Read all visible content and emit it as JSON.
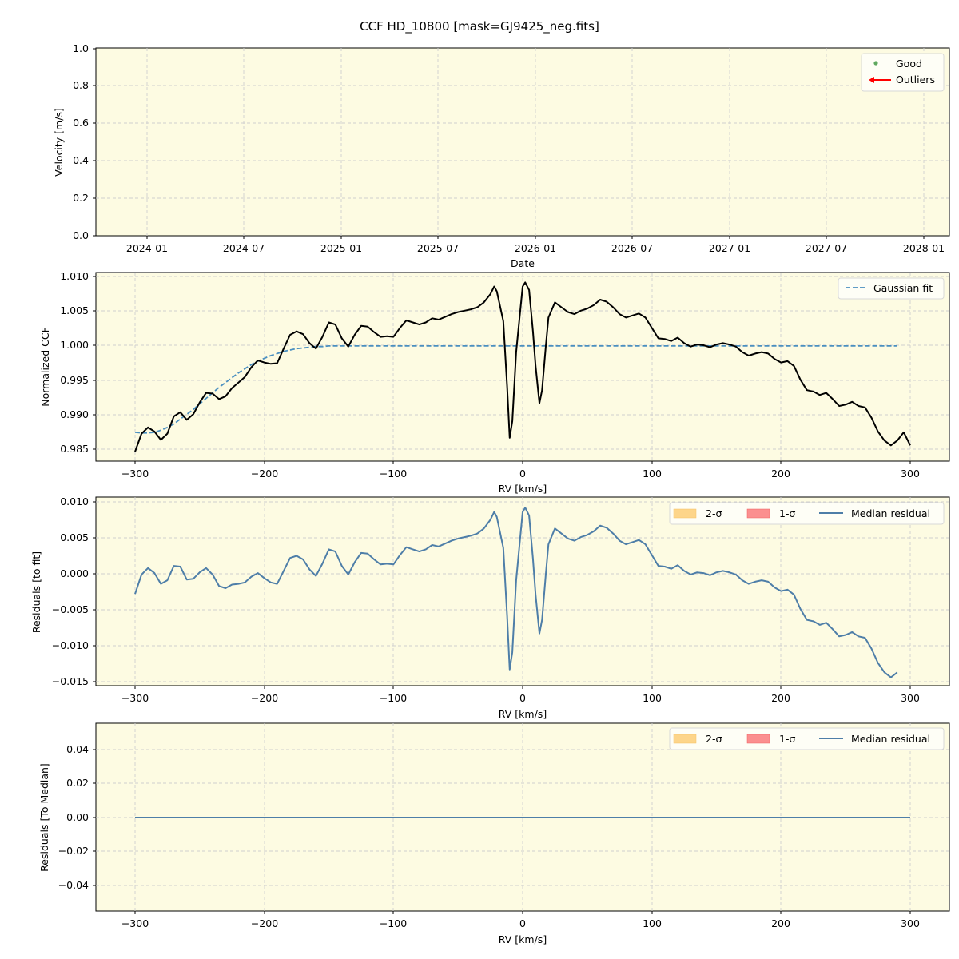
{
  "figure": {
    "title": "CCF HD_10800 [mask=GJ9425_neg.fits]",
    "background": "#fdfbe2"
  },
  "panels": [
    {
      "id": "velocity",
      "ylabel": "Velocity [m/s]",
      "xlabel": "Date",
      "yticks": [
        "0.0",
        "0.2",
        "0.4",
        "0.6",
        "0.8",
        "1.0"
      ],
      "xticks": [
        "2024-01",
        "2024-07",
        "2025-01",
        "2025-07",
        "2026-01",
        "2026-07",
        "2027-01",
        "2027-07",
        "2028-01"
      ],
      "legend": [
        {
          "label": "Good",
          "color": "#5fa85f",
          "marker": "dot"
        },
        {
          "label": "Outliers",
          "color": "#ff0000",
          "marker": "arrow-left"
        }
      ]
    },
    {
      "id": "ccf",
      "ylabel": "Normalized CCF",
      "xlabel": "RV [km/s]",
      "yticks": [
        "0.985",
        "0.990",
        "0.995",
        "1.000",
        "1.005",
        "1.010"
      ],
      "xticks": [
        "−300",
        "−200",
        "−100",
        "0",
        "100",
        "200",
        "300"
      ],
      "legend": [
        {
          "label": "Gaussian fit",
          "color": "#4a8fc0",
          "style": "dashed"
        }
      ]
    },
    {
      "id": "residuals-fit",
      "ylabel": "Residuals [to fit]",
      "xlabel": "RV [km/s]",
      "yticks": [
        "−0.015",
        "−0.010",
        "−0.005",
        "0.000",
        "0.005",
        "0.010"
      ],
      "xticks": [
        "−300",
        "−200",
        "−100",
        "0",
        "100",
        "200",
        "300"
      ],
      "legend": [
        {
          "label": "2-σ",
          "color": "#fdd58a"
        },
        {
          "label": "1-σ",
          "color": "#fb8f8f"
        },
        {
          "label": "Median residual",
          "color": "#4e7ea8"
        }
      ]
    },
    {
      "id": "residuals-median",
      "ylabel": "Residuals [To Median]",
      "xlabel": "RV [km/s]",
      "yticks": [
        "−0.04",
        "−0.02",
        "0.00",
        "0.02",
        "0.04"
      ],
      "xticks": [
        "−300",
        "−200",
        "−100",
        "0",
        "100",
        "200",
        "300"
      ],
      "legend": [
        {
          "label": "2-σ",
          "color": "#fdd58a"
        },
        {
          "label": "1-σ",
          "color": "#fb8f8f"
        },
        {
          "label": "Median residual",
          "color": "#4e7ea8"
        }
      ]
    }
  ],
  "chart_data": [
    {
      "type": "scatter",
      "title": "CCF HD_10800 [mask=GJ9425_neg.fits]",
      "xlabel": "Date",
      "ylabel": "Velocity [m/s]",
      "x_tick_labels": [
        "2024-01",
        "2024-07",
        "2025-01",
        "2025-07",
        "2026-01",
        "2026-07",
        "2027-01",
        "2027-07",
        "2028-01"
      ],
      "ylim": [
        0.0,
        1.0
      ],
      "series": [
        {
          "name": "Good",
          "values": []
        },
        {
          "name": "Outliers",
          "values": []
        }
      ],
      "grid": true,
      "legend_position": "upper right"
    },
    {
      "type": "line",
      "xlabel": "RV [km/s]",
      "ylabel": "Normalized CCF",
      "xlim": [
        -330,
        330
      ],
      "ylim": [
        0.9843,
        1.0105
      ],
      "x": [
        -300,
        -295,
        -290,
        -285,
        -280,
        -275,
        -270,
        -265,
        -260,
        -255,
        -250,
        -245,
        -240,
        -235,
        -230,
        -225,
        -220,
        -215,
        -210,
        -205,
        -200,
        -195,
        -190,
        -185,
        -180,
        -175,
        -170,
        -165,
        -160,
        -155,
        -150,
        -145,
        -140,
        -135,
        -130,
        -125,
        -120,
        -115,
        -110,
        -105,
        -100,
        -95,
        -90,
        -85,
        -80,
        -75,
        -70,
        -65,
        -60,
        -55,
        -50,
        -45,
        -40,
        -35,
        -30,
        -25,
        -22,
        -20,
        -15,
        -12,
        -10,
        -8,
        -5,
        0,
        2,
        5,
        8,
        10,
        13,
        15,
        18,
        20,
        25,
        30,
        35,
        40,
        45,
        50,
        55,
        60,
        65,
        70,
        75,
        80,
        85,
        90,
        95,
        100,
        105,
        110,
        115,
        120,
        125,
        130,
        135,
        140,
        145,
        150,
        155,
        160,
        165,
        170,
        175,
        180,
        185,
        190,
        195,
        200,
        205,
        210,
        215,
        220,
        225,
        230,
        235,
        240,
        245,
        250,
        255,
        260,
        265,
        270,
        275,
        280,
        285,
        290,
        295,
        300
      ],
      "series": [
        {
          "name": "CCF",
          "values": [
            0.9846,
            0.9872,
            0.9881,
            0.9875,
            0.9863,
            0.9872,
            0.9897,
            0.9903,
            0.9892,
            0.99,
            0.9917,
            0.9931,
            0.993,
            0.9922,
            0.9926,
            0.9938,
            0.9946,
            0.9954,
            0.9968,
            0.9978,
            0.9975,
            0.9973,
            0.9974,
            0.9995,
            1.0015,
            1.002,
            1.0016,
            1.0003,
            0.9995,
            1.0012,
            1.0033,
            1.003,
            1.001,
            0.9998,
            1.0015,
            1.0028,
            1.0027,
            1.0019,
            1.0012,
            1.0013,
            1.0012,
            1.0025,
            1.0036,
            1.0033,
            1.003,
            1.0033,
            1.0039,
            1.0037,
            1.0041,
            1.0045,
            1.0048,
            1.005,
            1.0052,
            1.0055,
            1.0062,
            1.0074,
            1.0085,
            1.0078,
            1.0035,
            0.994,
            0.9866,
            0.989,
            0.999,
            1.0085,
            1.0091,
            1.008,
            1.002,
            0.997,
            0.9916,
            0.9935,
            1.0,
            1.004,
            1.0062,
            1.0055,
            1.0048,
            1.0045,
            1.005,
            1.0053,
            1.0058,
            1.0066,
            1.0063,
            1.0055,
            1.0045,
            1.004,
            1.0043,
            1.0046,
            1.004,
            1.0025,
            1.001,
            1.0009,
            1.0006,
            1.0011,
            1.0003,
            0.9998,
            1.0001,
            1.0,
            0.9997,
            1.0001,
            1.0003,
            1.0001,
            0.9998,
            0.999,
            0.9985,
            0.9988,
            0.999,
            0.9988,
            0.998,
            0.9975,
            0.9977,
            0.997,
            0.995,
            0.9935,
            0.9933,
            0.9928,
            0.9931,
            0.9922,
            0.9912,
            0.9914,
            0.9918,
            0.9912,
            0.991,
            0.9895,
            0.9875,
            0.9862,
            0.9855,
            0.9862,
            0.9874,
            0.9855
          ]
        },
        {
          "name": "Gaussian fit",
          "values": [
            0.9874,
            0.9873,
            0.9873,
            0.9874,
            0.9877,
            0.9881,
            0.9886,
            0.9893,
            0.99,
            0.9907,
            0.9915,
            0.9923,
            0.9931,
            0.9939,
            0.9946,
            0.9953,
            0.996,
            0.9966,
            0.9972,
            0.9977,
            0.9981,
            0.9985,
            0.9988,
            0.9991,
            0.9993,
            0.9995,
            0.9996,
            0.9997,
            0.9998,
            0.9998,
            0.9999,
            0.9999,
            0.9999,
            0.9999,
            0.9999,
            0.9999,
            0.9999,
            0.9999,
            0.9999,
            0.9999,
            0.9999,
            0.9999,
            0.9999,
            0.9999,
            0.9999,
            0.9999,
            0.9999,
            0.9999,
            0.9999,
            0.9999,
            0.9999,
            0.9999,
            0.9999,
            0.9999,
            0.9999,
            0.9999,
            0.9999,
            0.9999,
            0.9999,
            0.9999,
            0.9999,
            0.9999,
            0.9999,
            0.9999,
            0.9999,
            0.9999,
            0.9999,
            0.9999,
            0.9999,
            0.9999,
            0.9999,
            0.9999,
            0.9999,
            0.9999,
            0.9999,
            0.9999,
            0.9999,
            0.9999,
            0.9999,
            0.9999,
            0.9999,
            0.9999,
            0.9999,
            0.9999,
            0.9999,
            0.9999,
            0.9999,
            0.9999,
            0.9999,
            0.9999,
            0.9999,
            0.9999,
            0.9999,
            0.9999,
            0.9999,
            0.9999,
            0.9999,
            0.9999,
            0.9999,
            0.9999,
            0.9999,
            0.9999,
            0.9999,
            0.9999,
            0.9999,
            0.9999,
            0.9999,
            0.9999,
            0.9999,
            0.9999,
            0.9999,
            0.9999,
            0.9999,
            0.9999,
            0.9999,
            0.9999,
            0.9999,
            0.9999,
            0.9999,
            0.9999,
            0.9999,
            0.9999,
            0.9999,
            0.9999,
            0.9999,
            0.9999
          ]
        }
      ],
      "grid": true,
      "legend_position": "upper right"
    },
    {
      "type": "line",
      "xlabel": "RV [km/s]",
      "ylabel": "Residuals [to fit]",
      "xlim": [
        -330,
        330
      ],
      "ylim": [
        -0.0155,
        0.0105
      ],
      "x_note": "same x grid as CCF panel",
      "series": [
        {
          "name": "Median residual",
          "values_note": "CCF minus Gaussian fit",
          "min": -0.0143,
          "max": 0.0092
        }
      ],
      "grid": true,
      "legend_position": "upper right"
    },
    {
      "type": "line",
      "xlabel": "RV [km/s]",
      "ylabel": "Residuals [To Median]",
      "xlim": [
        -330,
        330
      ],
      "ylim": [
        -0.055,
        0.055
      ],
      "x": [
        -300,
        300
      ],
      "series": [
        {
          "name": "Median residual",
          "values": [
            0.0,
            0.0
          ]
        }
      ],
      "grid": true,
      "legend_position": "upper right"
    }
  ]
}
